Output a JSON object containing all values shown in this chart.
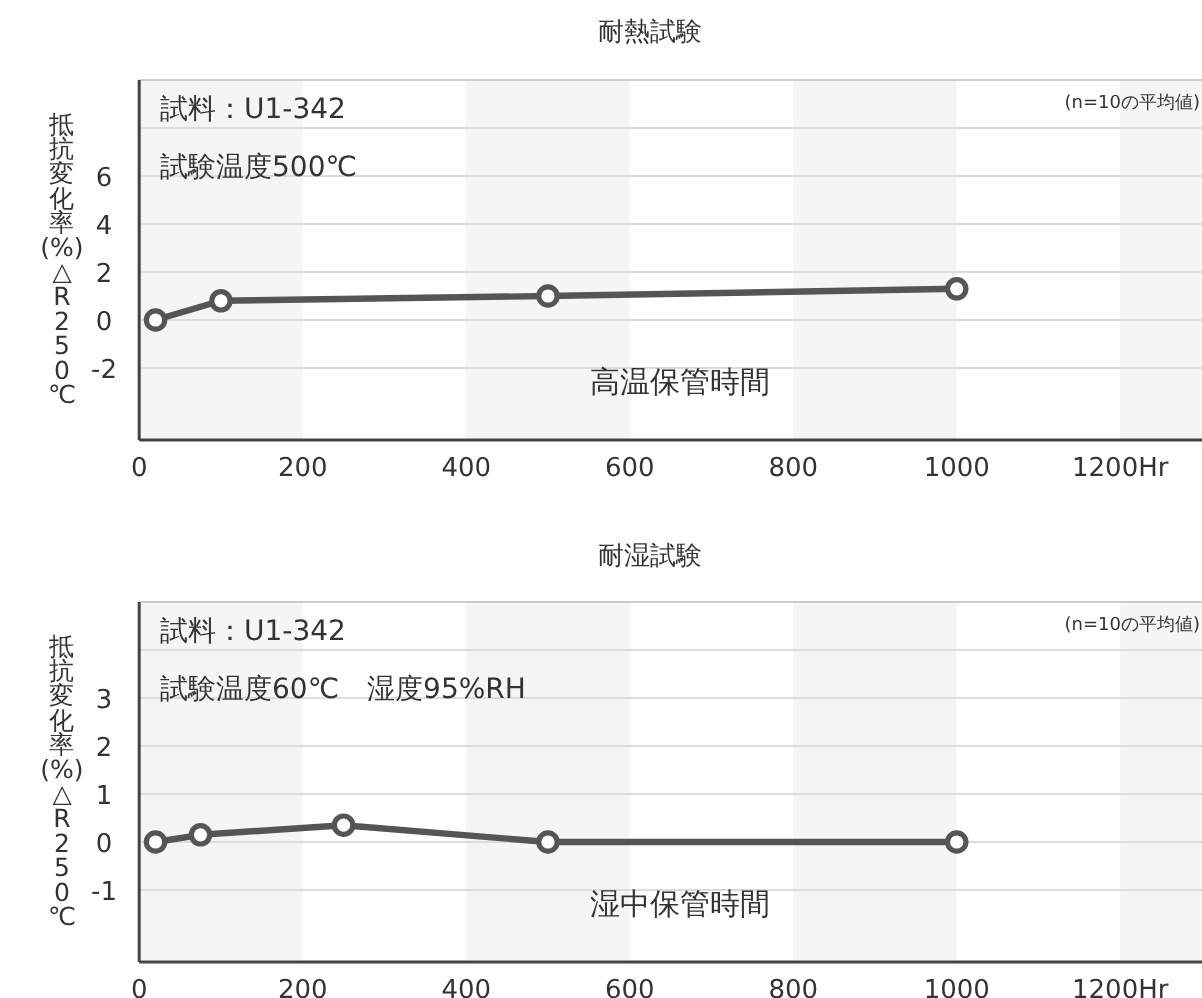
{
  "chart_data": [
    {
      "type": "line",
      "title": "耐熱試験",
      "xlabel": "高温保管時間",
      "ylabel": "抵抗変化率(%)△R250℃",
      "x": [
        20,
        100,
        500,
        1000
      ],
      "series": [
        {
          "color": "#555555",
          "values": [
            0,
            0.8,
            1.0,
            1.3
          ]
        }
      ],
      "xlim": [
        0,
        1300
      ],
      "xticks": [
        0,
        200,
        400,
        600,
        800,
        1000,
        {
          "value": 1200,
          "label": "1200Hr"
        }
      ],
      "ylim": [
        -5,
        10
      ],
      "yticks": [
        -2,
        0,
        2,
        4,
        6,
        {
          "value": 8,
          "label": null
        }
      ],
      "grid": "y",
      "marker": "circle",
      "bands": [
        {
          "axis": "x",
          "from": 0,
          "to": 200,
          "color": "#f4f6f5"
        },
        {
          "axis": "x",
          "from": 400,
          "to": 600,
          "color": "#f4f6f5"
        },
        {
          "axis": "x",
          "from": 800,
          "to": 1000,
          "color": "#f4f6f5"
        },
        {
          "axis": "x",
          "from": 1200,
          "to": 1300,
          "color": "#f4f6f5"
        }
      ],
      "annotations": [
        "試料：U1-342",
        "試験温度500℃",
        "(n=10の平均値)"
      ]
    },
    {
      "type": "line",
      "title": "耐湿試験",
      "xlabel": "湿中保管時間",
      "ylabel": "抵抗変化率(%)△R250℃",
      "x": [
        20,
        75,
        250,
        500,
        1000
      ],
      "series": [
        {
          "color": "#555555",
          "values": [
            0,
            0.15,
            0.35,
            0,
            0
          ]
        }
      ],
      "xlim": [
        0,
        1300
      ],
      "xticks": [
        0,
        200,
        400,
        600,
        800,
        1000,
        {
          "value": 1200,
          "label": "1200Hr"
        }
      ],
      "ylim": [
        -2.5,
        5
      ],
      "yticks": [
        -1,
        0,
        1,
        2,
        3,
        {
          "value": 4,
          "label": null
        }
      ],
      "grid": "y",
      "marker": "circle",
      "bands": [
        {
          "axis": "x",
          "from": 0,
          "to": 200,
          "color": "#f4f6f5"
        },
        {
          "axis": "x",
          "from": 400,
          "to": 600,
          "color": "#f4f6f5"
        },
        {
          "axis": "x",
          "from": 800,
          "to": 1000,
          "color": "#f4f6f5"
        },
        {
          "axis": "x",
          "from": 1200,
          "to": 1300,
          "color": "#f4f6f5"
        }
      ],
      "annotations": [
        "試料：U1-342",
        "試験温度60℃　湿度95%RH",
        "(n=10の平均値)"
      ]
    }
  ]
}
